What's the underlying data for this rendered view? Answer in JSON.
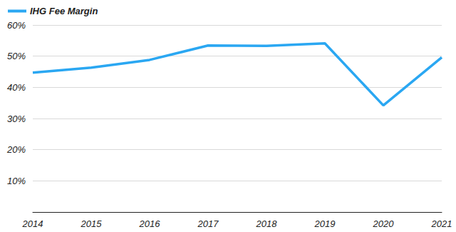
{
  "chart_data": {
    "type": "line",
    "categories": [
      "2014",
      "2015",
      "2016",
      "2017",
      "2018",
      "2019",
      "2020",
      "2021"
    ],
    "series": [
      {
        "name": "IHG Fee Margin",
        "color": "#2aa7f2",
        "values": [
          44.7,
          46.3,
          48.8,
          53.4,
          53.3,
          54.1,
          34.2,
          49.6
        ]
      }
    ],
    "ylim": [
      0,
      60
    ],
    "yticks": [
      {
        "value": 10,
        "label": "10%"
      },
      {
        "value": 20,
        "label": "20%"
      },
      {
        "value": 30,
        "label": "30%"
      },
      {
        "value": 40,
        "label": "40%"
      },
      {
        "value": 50,
        "label": "50%"
      },
      {
        "value": 60,
        "label": "60%"
      }
    ],
    "grid": true,
    "legend": "top-left"
  }
}
